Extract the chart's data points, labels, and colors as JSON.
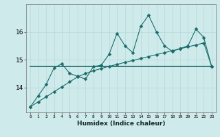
{
  "xlabel": "Humidex (Indice chaleur)",
  "background_color": "#ceeaea",
  "line_color": "#1a6b6b",
  "x_values": [
    0,
    1,
    2,
    3,
    4,
    5,
    6,
    7,
    8,
    9,
    10,
    11,
    12,
    13,
    14,
    15,
    16,
    17,
    18,
    19,
    20,
    21,
    22,
    23
  ],
  "y_main": [
    13.3,
    13.7,
    14.1,
    14.7,
    14.85,
    14.5,
    14.4,
    14.3,
    14.75,
    14.8,
    15.2,
    15.95,
    15.5,
    15.25,
    16.2,
    16.6,
    16.0,
    15.5,
    15.3,
    15.4,
    15.5,
    16.1,
    15.8,
    14.75
  ],
  "y_flat": [
    14.75,
    14.75,
    14.75,
    14.75,
    14.75,
    14.75,
    14.75,
    14.75,
    14.75,
    14.75,
    14.75,
    14.75,
    14.75,
    14.75,
    14.75,
    14.75,
    14.75,
    14.75,
    14.75,
    14.75,
    14.75,
    14.75,
    14.75,
    14.75
  ],
  "y_trend": [
    13.3,
    13.48,
    13.66,
    13.84,
    14.02,
    14.2,
    14.38,
    14.5,
    14.6,
    14.68,
    14.76,
    14.83,
    14.9,
    14.97,
    15.04,
    15.11,
    15.18,
    15.25,
    15.32,
    15.39,
    15.46,
    15.53,
    15.6,
    14.75
  ],
  "ylim": [
    13.1,
    17.0
  ],
  "yticks": [
    14,
    15,
    16
  ],
  "xlim": [
    -0.5,
    23.5
  ],
  "xticks": [
    0,
    1,
    2,
    3,
    4,
    5,
    6,
    7,
    8,
    9,
    10,
    11,
    12,
    13,
    14,
    15,
    16,
    17,
    18,
    19,
    20,
    21,
    22,
    23
  ],
  "grid_color": "#b8d8d8",
  "marker": "D",
  "markersize": 2.5,
  "linewidth": 0.8,
  "flat_linewidth": 1.2
}
